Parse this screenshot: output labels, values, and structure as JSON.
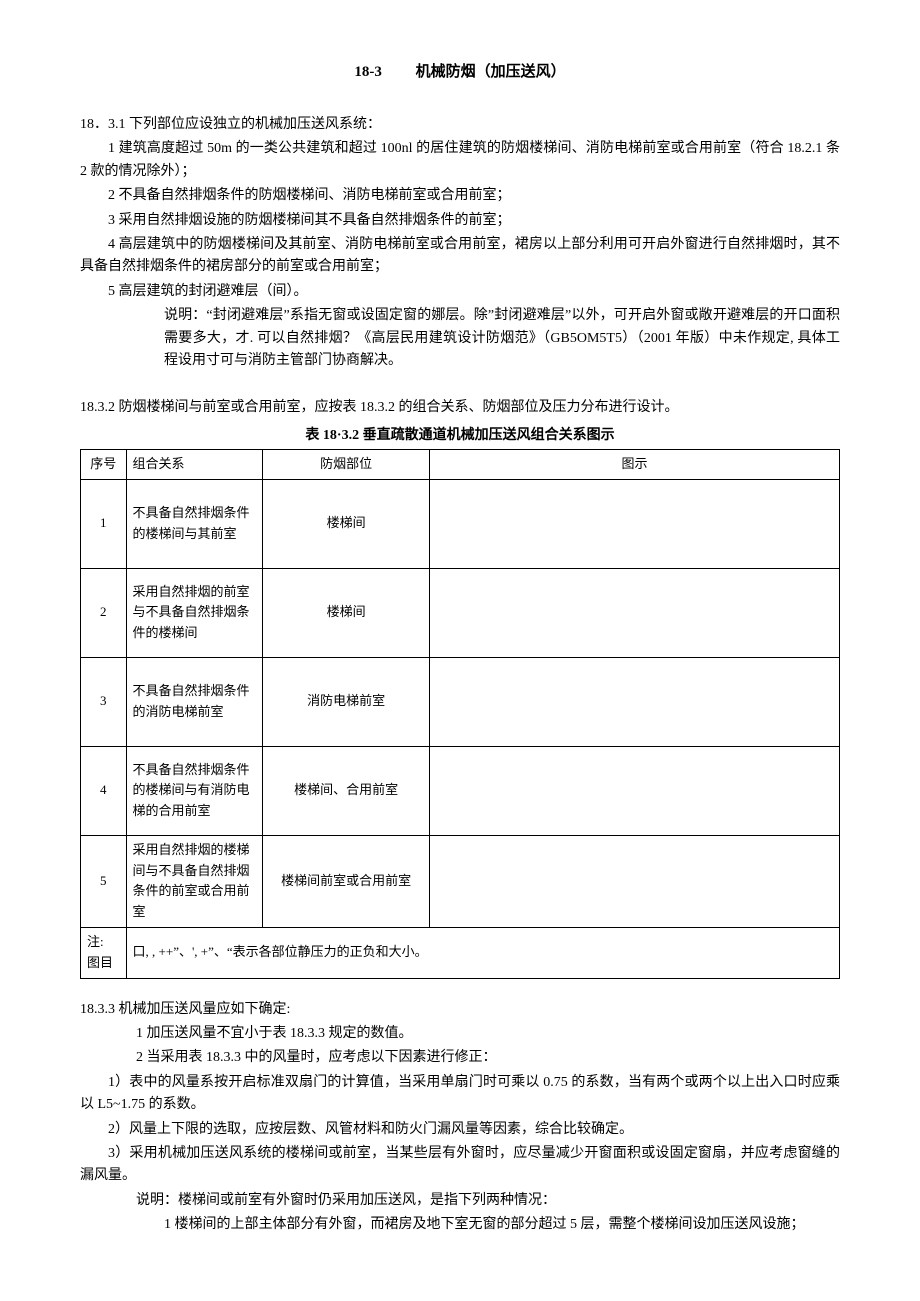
{
  "title_num": "18-3",
  "title_text": "机械防烟（加压送风）",
  "p1": "18．3.1 下列部位应设独立的机械加压送风系统：",
  "p2": "1 建筑高度超过 50m 的一类公共建筑和超过 100nl 的居住建筑的防烟楼梯间、消防电梯前室或合用前室（符合 18.2.1 条 2 款的情况除外）；",
  "p3": "2 不具备自然排烟条件的防烟楼梯间、消防电梯前室或合用前室；",
  "p4": "3 采用自然排烟设施的防烟楼梯间其不具备自然排烟条件的前室；",
  "p5": "4 高层建筑中的防烟楼梯间及其前室、消防电梯前室或合用前室，裙房以上部分利用可开启外窗进行自然排烟时，其不具备自然排烟条件的裙房部分的前室或合用前室；",
  "p6": "5 高层建筑的封闭避难层（间）。",
  "p7": "说明：“封闭避难层”系指无窗或设固定窗的娜层。除”封闭避难层”以外，可开启外窗或敞开避难层的开口面积需要多大，才. 可以自然排烟？《高层民用建筑设计防烟范》（GB5OM5T5）（2001 年版）中未作规定, 具体工程设用寸可与消防主管部门协商解决。",
  "p8_prefix": "18.3.2 防烟楼梯间与前室或合用前室，应按表 18.3.2 的组合关系、防烟部位及压力分布进行设计。",
  "p8_bold": "表 18·3.2 垂直疏散通道机械加压送风组合关系图示",
  "table": {
    "headers": [
      "序号",
      "组合关系",
      "防烟部位",
      "图示"
    ],
    "rows": [
      {
        "seq": "1",
        "rel": "不具备自然排烟条件的楼梯间与其前室",
        "part": "楼梯间",
        "diagram": ""
      },
      {
        "seq": "2",
        "rel": "采用自然排烟的前室与不具备自然排烟条件的楼梯间",
        "part": "楼梯间",
        "diagram": ""
      },
      {
        "seq": "3",
        "rel": "不具备自然排烟条件的消防电梯前室",
        "part": "消防电梯前室",
        "diagram": ""
      },
      {
        "seq": "4",
        "rel": "不具备自然排烟条件的楼梯间与有消防电梯的合用前室",
        "part": "楼梯间、合用前室",
        "diagram": ""
      },
      {
        "seq": "5",
        "rel": "采用自然排烟的楼梯间与不具备自然排烟条件的前室或合用前室",
        "part": "楼梯间前室或合用前室",
        "diagram": ""
      }
    ],
    "note_label": "注: 图目",
    "note_text": "口, , ++”、', +”、“表示各部位静压力的正负和大小。"
  },
  "p9": "18.3.3 机械加压送风量应如下确定:",
  "p10": "1 加压送风量不宜小于表 18.3.3 规定的数值。",
  "p11": "2 当采用表 18.3.3 中的风量时，应考虑以下因素进行修正：",
  "p12": "1）表中的风量系按开启标准双扇门的计算值，当采用单扇门时可乘以 0.75 的系数，当有两个或两个以上出入口时应乘以 L5~1.75 的系数。",
  "p13": "2）风量上下限的选取，应按层数、风管材料和防火门漏风量等因素，综合比较确定。",
  "p14": "3）采用机械加压送风系统的楼梯间或前室，当某些层有外窗时，应尽量减少开窗面积或设固定窗扇，并应考虑窗缝的漏风量。",
  "p15": "说明：楼梯间或前室有外窗时仍采用加压送风，是指下列两种情况：",
  "p16": "1 楼梯间的上部主体部分有外窗，而裙房及地下室无窗的部分超过 5 层，需整个楼梯间设加压送风设施；"
}
